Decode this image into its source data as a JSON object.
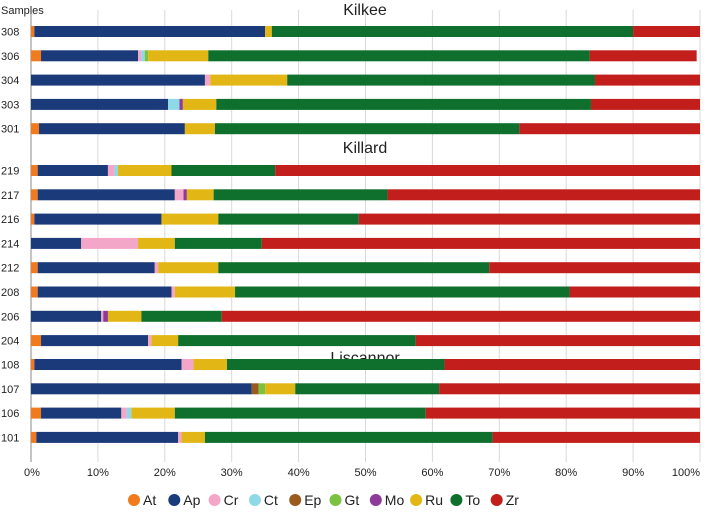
{
  "chart_data": {
    "type": "bar",
    "orientation": "horizontal",
    "stacked": true,
    "samples_label": "Samples",
    "x_ticks": [
      "0%",
      "10%",
      "20%",
      "30%",
      "40%",
      "50%",
      "60%",
      "70%",
      "80%",
      "90%",
      "100%"
    ],
    "xlim": [
      0,
      100
    ],
    "grid": true,
    "legend_position": "bottom",
    "minerals": [
      {
        "name": "At",
        "color": "#f07a1c"
      },
      {
        "name": "Ap",
        "color": "#1b3a7a"
      },
      {
        "name": "Cr",
        "color": "#f4a6c8"
      },
      {
        "name": "Ct",
        "color": "#8ed8e8"
      },
      {
        "name": "Ep",
        "color": "#9a5a1e"
      },
      {
        "name": "Gt",
        "color": "#7cc242"
      },
      {
        "name": "Mo",
        "color": "#8e3a9a"
      },
      {
        "name": "Ru",
        "color": "#e2b715"
      },
      {
        "name": "To",
        "color": "#0f6f2d"
      },
      {
        "name": "Zr",
        "color": "#c21f1c"
      }
    ],
    "groups": [
      {
        "name": "Kilkee",
        "samples": [
          {
            "id": "308",
            "values": [
              0.5,
              34.5,
              0,
              0,
              0,
              0,
              0,
              1,
              54,
              10
            ]
          },
          {
            "id": "306",
            "values": [
              1.5,
              14.5,
              0.5,
              0.5,
              0,
              0.5,
              0,
              9,
              57,
              16
            ]
          },
          {
            "id": "304",
            "values": [
              0,
              26,
              0.8,
              0,
              0,
              0,
              0,
              11.5,
              46,
              15.7
            ]
          },
          {
            "id": "303",
            "values": [
              0,
              20.5,
              0,
              1.7,
              0,
              0,
              0.5,
              5,
              56,
              16.3
            ]
          },
          {
            "id": "301",
            "values": [
              1.2,
              21.8,
              0,
              0,
              0,
              0,
              0,
              4.5,
              45.5,
              27
            ]
          }
        ]
      },
      {
        "name": "Killard",
        "samples": [
          {
            "id": "219",
            "values": [
              1,
              10.5,
              1,
              0.5,
              0,
              0,
              0,
              8,
              15.5,
              63.5
            ]
          },
          {
            "id": "217",
            "values": [
              1,
              20.5,
              1.3,
              0,
              0,
              0,
              0.5,
              4,
              26,
              46.7
            ]
          },
          {
            "id": "216",
            "values": [
              0.5,
              19,
              0,
              0,
              0,
              0,
              0,
              8.5,
              21,
              51
            ]
          },
          {
            "id": "214",
            "values": [
              0,
              7.5,
              8.5,
              0,
              0,
              0,
              0,
              5.5,
              13,
              65.5
            ]
          },
          {
            "id": "212",
            "values": [
              1,
              17.5,
              0.5,
              0,
              0,
              0,
              0,
              9,
              40.5,
              31.5
            ]
          },
          {
            "id": "208",
            "values": [
              1,
              20,
              0.5,
              0,
              0,
              0,
              0,
              9,
              50,
              19.5
            ]
          },
          {
            "id": "206",
            "values": [
              0,
              10.5,
              0.3,
              0,
              0,
              0,
              0.7,
              5,
              12,
              71.5
            ]
          },
          {
            "id": "204",
            "values": [
              1.5,
              16,
              0.5,
              0,
              0,
              0,
              0,
              4,
              35.5,
              42.5
            ]
          }
        ]
      },
      {
        "name": "Liscannor",
        "samples": [
          {
            "id": "108",
            "values": [
              0.5,
              22,
              1.8,
              0,
              0,
              0,
              0,
              5,
              32.5,
              38.2
            ]
          },
          {
            "id": "107",
            "values": [
              0,
              33,
              0,
              0,
              1,
              1,
              0,
              4.5,
              21.5,
              39
            ]
          },
          {
            "id": "106",
            "values": [
              1.5,
              12,
              0.8,
              0.7,
              0,
              0,
              0,
              6.5,
              37.5,
              41
            ]
          },
          {
            "id": "101",
            "values": [
              0.8,
              21.2,
              0.5,
              0,
              0,
              0,
              0,
              3.5,
              43,
              31
            ]
          }
        ]
      }
    ]
  }
}
